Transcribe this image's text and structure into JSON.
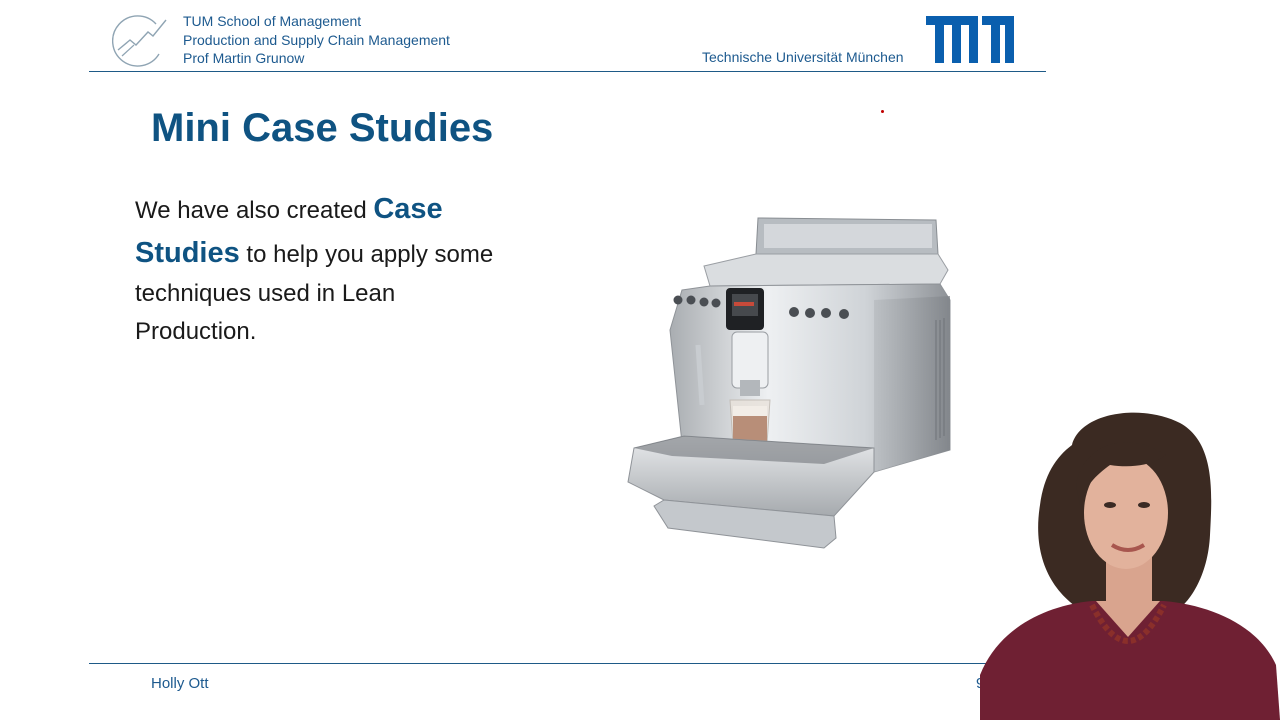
{
  "header": {
    "school_lines": [
      "TUM School of Management",
      "Production and Supply Chain Management",
      "Prof Martin Grunow"
    ],
    "university": "Technische Universität München",
    "brand_color": "#1d5a8f"
  },
  "slide": {
    "title": "Mini Case Studies",
    "body": {
      "intro": "We have also created ",
      "highlight_1": "Case",
      "highlight_2": "Studies",
      "rest_1": " to help you apply some",
      "rest_2": "techniques used in Lean",
      "rest_3": "Production."
    },
    "image": "coffee-machine"
  },
  "footer": {
    "presenter": "Holly Ott",
    "page_number": "9"
  },
  "video": {
    "content": "speaker-video"
  },
  "icons": [
    "school-logo-icon",
    "tum-logo-icon",
    "laser-pointer-dot"
  ],
  "colors": {
    "title": "#0f5382",
    "accent": "#1e5a87",
    "pointer": "#c00000"
  }
}
